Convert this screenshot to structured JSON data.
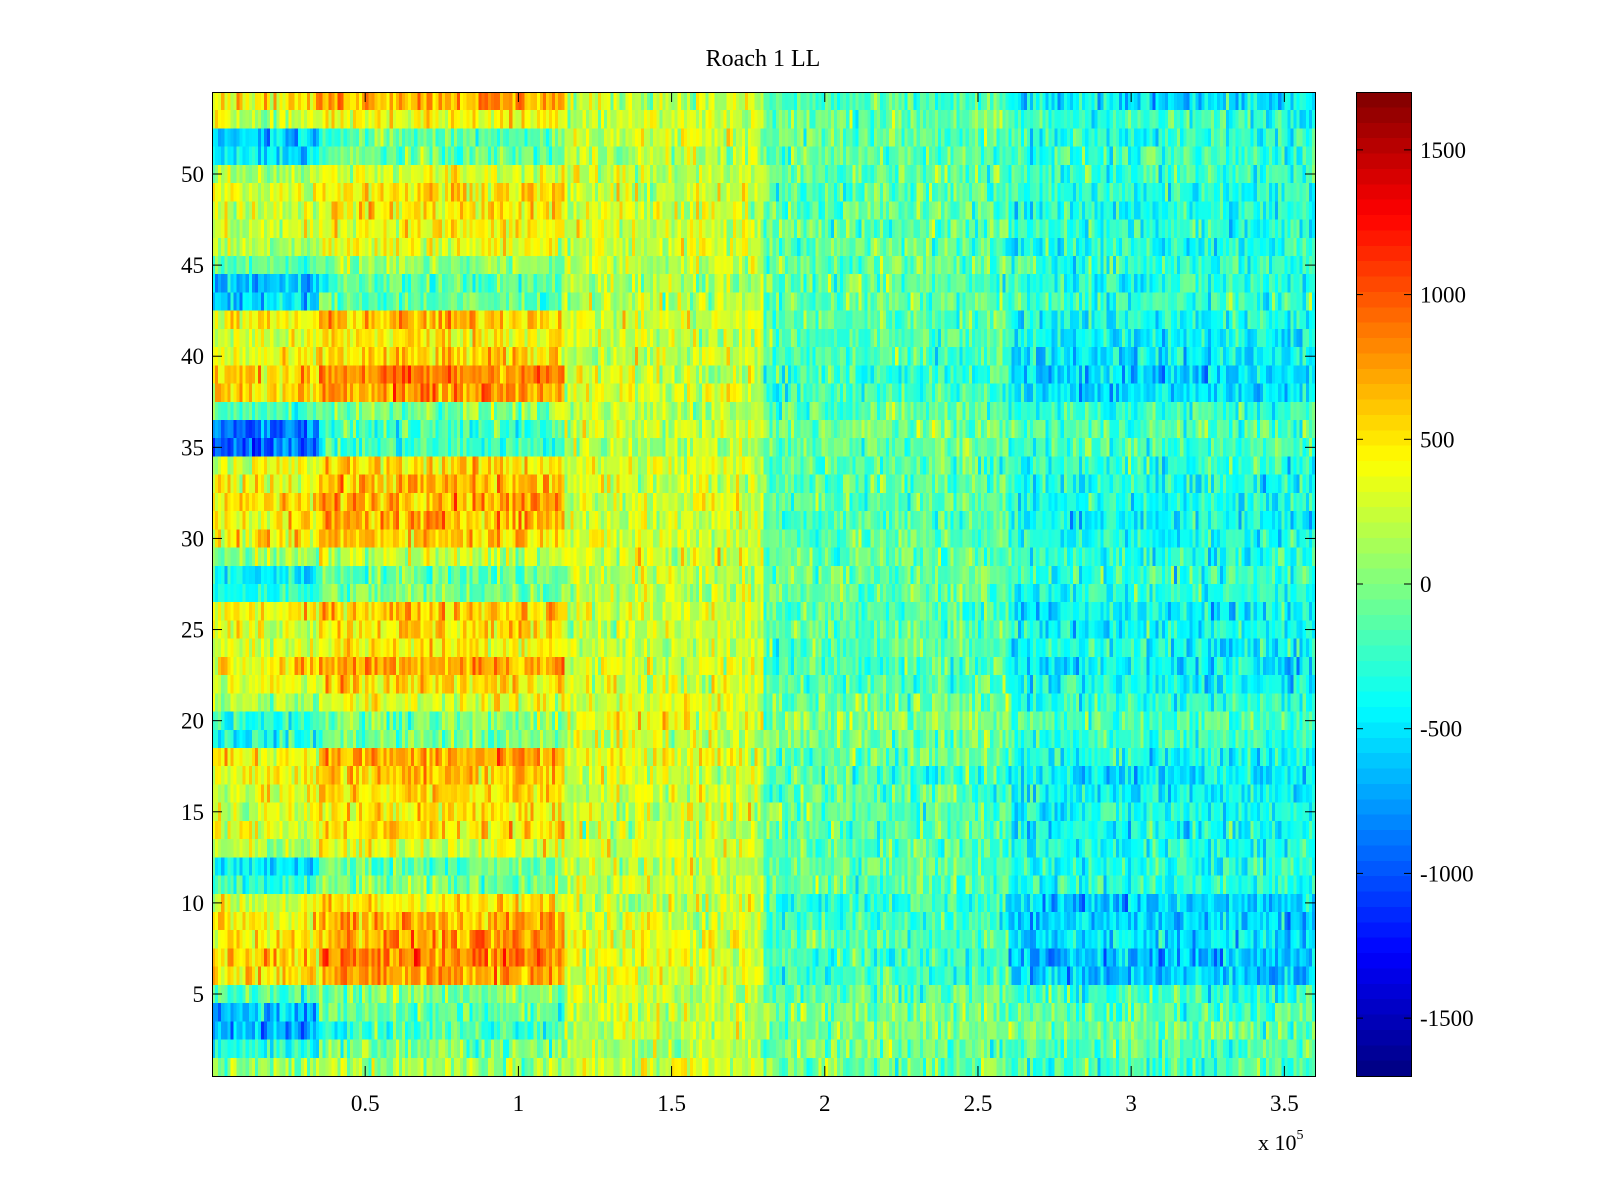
{
  "chart_data": {
    "type": "heatmap",
    "title": "Roach 1 LL",
    "xlabel": "",
    "ylabel": "",
    "x_multiplier_label": "x 10",
    "x_multiplier_exponent": "5",
    "xlim": [
      0,
      3.6
    ],
    "ylim": [
      0.5,
      54.5
    ],
    "x_ticks": [
      0.5,
      1,
      1.5,
      2,
      2.5,
      3,
      3.5
    ],
    "x_tick_labels": [
      "0.5",
      "1",
      "1.5",
      "2",
      "2.5",
      "3",
      "3.5"
    ],
    "y_ticks": [
      5,
      10,
      15,
      20,
      25,
      30,
      35,
      40,
      45,
      50
    ],
    "y_tick_labels": [
      "5",
      "10",
      "15",
      "20",
      "25",
      "30",
      "35",
      "40",
      "45",
      "50"
    ],
    "colorbar": {
      "colormap": "jet",
      "clim": [
        -1700,
        1700
      ],
      "ticks": [
        -1500,
        -1000,
        -500,
        0,
        500,
        1000,
        1500
      ],
      "tick_labels": [
        "-1500",
        "-1000",
        "-500",
        "0",
        "500",
        "1000",
        "1500"
      ]
    },
    "rows": 54,
    "row_profiles": [
      {
        "row": 1,
        "early": 150,
        "mid": 100,
        "late": -200
      },
      {
        "row": 2,
        "early": -300,
        "mid": 50,
        "late": -150
      },
      {
        "row": 3,
        "early": -700,
        "mid": 100,
        "late": -100
      },
      {
        "row": 4,
        "early": -600,
        "mid": 150,
        "late": -150
      },
      {
        "row": 5,
        "early": -200,
        "mid": 100,
        "late": -250
      },
      {
        "row": 6,
        "early": 700,
        "mid": 200,
        "late": -600
      },
      {
        "row": 7,
        "early": 800,
        "mid": 200,
        "late": -650
      },
      {
        "row": 8,
        "early": 700,
        "mid": 250,
        "late": -500
      },
      {
        "row": 9,
        "early": 650,
        "mid": 150,
        "late": -550
      },
      {
        "row": 10,
        "early": 450,
        "mid": 150,
        "late": -600
      },
      {
        "row": 11,
        "early": -300,
        "mid": 100,
        "late": -300
      },
      {
        "row": 12,
        "early": -500,
        "mid": 100,
        "late": -300
      },
      {
        "row": 13,
        "early": 300,
        "mid": 150,
        "late": -350
      },
      {
        "row": 14,
        "early": 500,
        "mid": 100,
        "late": -400
      },
      {
        "row": 15,
        "early": 450,
        "mid": 150,
        "late": -350
      },
      {
        "row": 16,
        "early": 500,
        "mid": 150,
        "late": -400
      },
      {
        "row": 17,
        "early": 600,
        "mid": 150,
        "late": -450
      },
      {
        "row": 18,
        "early": 650,
        "mid": 200,
        "late": -350
      },
      {
        "row": 19,
        "early": -350,
        "mid": 150,
        "late": -250
      },
      {
        "row": 20,
        "early": -250,
        "mid": 250,
        "late": -150
      },
      {
        "row": 21,
        "early": 300,
        "mid": 200,
        "late": -300
      },
      {
        "row": 22,
        "early": 500,
        "mid": 150,
        "late": -400
      },
      {
        "row": 23,
        "early": 700,
        "mid": 150,
        "late": -450
      },
      {
        "row": 24,
        "early": 450,
        "mid": 100,
        "late": -350
      },
      {
        "row": 25,
        "early": 500,
        "mid": 100,
        "late": -400
      },
      {
        "row": 26,
        "early": 600,
        "mid": 150,
        "late": -450
      },
      {
        "row": 27,
        "early": -300,
        "mid": 100,
        "late": -300
      },
      {
        "row": 28,
        "early": -450,
        "mid": 100,
        "late": -250
      },
      {
        "row": 29,
        "early": 200,
        "mid": 150,
        "late": -300
      },
      {
        "row": 30,
        "early": 600,
        "mid": 150,
        "late": -350
      },
      {
        "row": 31,
        "early": 650,
        "mid": 150,
        "late": -400
      },
      {
        "row": 32,
        "early": 700,
        "mid": 200,
        "late": -400
      },
      {
        "row": 33,
        "early": 600,
        "mid": 150,
        "late": -350
      },
      {
        "row": 34,
        "early": 500,
        "mid": 150,
        "late": -300
      },
      {
        "row": 35,
        "early": -900,
        "mid": 50,
        "late": -200
      },
      {
        "row": 36,
        "early": -850,
        "mid": 100,
        "late": -150
      },
      {
        "row": 37,
        "early": -200,
        "mid": 50,
        "late": -250
      },
      {
        "row": 38,
        "early": 750,
        "mid": 150,
        "late": -500
      },
      {
        "row": 39,
        "early": 800,
        "mid": 150,
        "late": -550
      },
      {
        "row": 40,
        "early": 500,
        "mid": 100,
        "late": -450
      },
      {
        "row": 41,
        "early": 450,
        "mid": 100,
        "late": -400
      },
      {
        "row": 42,
        "early": 600,
        "mid": 150,
        "late": -350
      },
      {
        "row": 43,
        "early": -550,
        "mid": 50,
        "late": -250
      },
      {
        "row": 44,
        "early": -650,
        "mid": 50,
        "late": -300
      },
      {
        "row": 45,
        "early": -100,
        "mid": 100,
        "late": -250
      },
      {
        "row": 46,
        "early": 350,
        "mid": 150,
        "late": -300
      },
      {
        "row": 47,
        "early": 400,
        "mid": 100,
        "late": -300
      },
      {
        "row": 48,
        "early": 450,
        "mid": 150,
        "late": -350
      },
      {
        "row": 49,
        "early": 500,
        "mid": 100,
        "late": -300
      },
      {
        "row": 50,
        "early": 300,
        "mid": 100,
        "late": -250
      },
      {
        "row": 51,
        "early": -500,
        "mid": 50,
        "late": -250
      },
      {
        "row": 52,
        "early": -550,
        "mid": 150,
        "late": -300
      },
      {
        "row": 53,
        "early": 400,
        "mid": 150,
        "late": -250
      },
      {
        "row": 54,
        "early": 700,
        "mid": 100,
        "late": -500
      }
    ]
  }
}
